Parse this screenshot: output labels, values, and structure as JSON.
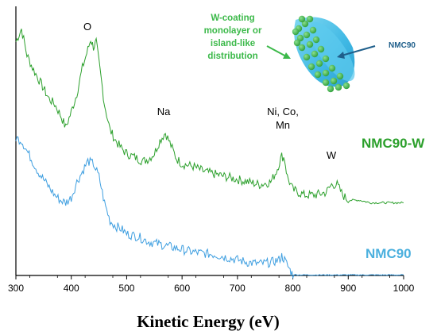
{
  "chart_data": {
    "type": "line",
    "xlabel": "Kinetic Energy (eV)",
    "ylabel": "",
    "xlim": [
      300,
      1000
    ],
    "xticks": [
      "300",
      "400",
      "500",
      "600",
      "700",
      "800",
      "900",
      "1000"
    ],
    "grid": false,
    "series": [
      {
        "name": "NMC90-W",
        "color": "#2ca02c",
        "points": [
          [
            300,
            0.9
          ],
          [
            310,
            0.95
          ],
          [
            320,
            0.85
          ],
          [
            330,
            0.8
          ],
          [
            340,
            0.76
          ],
          [
            350,
            0.72
          ],
          [
            360,
            0.68
          ],
          [
            370,
            0.66
          ],
          [
            380,
            0.62
          ],
          [
            390,
            0.57
          ],
          [
            400,
            0.63
          ],
          [
            410,
            0.7
          ],
          [
            420,
            0.8
          ],
          [
            430,
            0.87
          ],
          [
            435,
            0.91
          ],
          [
            440,
            0.88
          ],
          [
            445,
            0.9
          ],
          [
            450,
            0.82
          ],
          [
            460,
            0.66
          ],
          [
            470,
            0.56
          ],
          [
            480,
            0.52
          ],
          [
            490,
            0.49
          ],
          [
            500,
            0.47
          ],
          [
            510,
            0.46
          ],
          [
            520,
            0.45
          ],
          [
            530,
            0.44
          ],
          [
            540,
            0.45
          ],
          [
            550,
            0.47
          ],
          [
            560,
            0.52
          ],
          [
            570,
            0.55
          ],
          [
            580,
            0.5
          ],
          [
            590,
            0.45
          ],
          [
            600,
            0.43
          ],
          [
            620,
            0.42
          ],
          [
            640,
            0.4
          ],
          [
            660,
            0.39
          ],
          [
            680,
            0.38
          ],
          [
            700,
            0.37
          ],
          [
            720,
            0.36
          ],
          [
            740,
            0.35
          ],
          [
            760,
            0.36
          ],
          [
            770,
            0.4
          ],
          [
            780,
            0.46
          ],
          [
            785,
            0.45
          ],
          [
            790,
            0.38
          ],
          [
            800,
            0.33
          ],
          [
            820,
            0.31
          ],
          [
            840,
            0.31
          ],
          [
            860,
            0.32
          ],
          [
            870,
            0.35
          ],
          [
            880,
            0.35
          ],
          [
            890,
            0.31
          ],
          [
            900,
            0.29
          ],
          [
            920,
            0.29
          ],
          [
            940,
            0.28
          ],
          [
            960,
            0.28
          ],
          [
            980,
            0.28
          ],
          [
            1000,
            0.28
          ]
        ]
      },
      {
        "name": "NMC90",
        "color": "#3f9fe0",
        "points": [
          [
            300,
            0.53
          ],
          [
            310,
            0.52
          ],
          [
            320,
            0.48
          ],
          [
            330,
            0.44
          ],
          [
            340,
            0.4
          ],
          [
            350,
            0.37
          ],
          [
            360,
            0.34
          ],
          [
            370,
            0.31
          ],
          [
            380,
            0.29
          ],
          [
            390,
            0.28
          ],
          [
            400,
            0.3
          ],
          [
            410,
            0.36
          ],
          [
            420,
            0.4
          ],
          [
            430,
            0.44
          ],
          [
            440,
            0.43
          ],
          [
            450,
            0.38
          ],
          [
            460,
            0.28
          ],
          [
            470,
            0.21
          ],
          [
            480,
            0.19
          ],
          [
            490,
            0.18
          ],
          [
            500,
            0.16
          ],
          [
            520,
            0.15
          ],
          [
            540,
            0.13
          ],
          [
            560,
            0.12
          ],
          [
            580,
            0.11
          ],
          [
            600,
            0.1
          ],
          [
            620,
            0.09
          ],
          [
            640,
            0.085
          ],
          [
            660,
            0.08
          ],
          [
            680,
            0.07
          ],
          [
            700,
            0.06
          ],
          [
            720,
            0.05
          ],
          [
            740,
            0.045
          ],
          [
            760,
            0.05
          ],
          [
            775,
            0.06
          ],
          [
            780,
            0.075
          ],
          [
            785,
            0.06
          ],
          [
            795,
            0.02
          ],
          [
            800,
            0.003
          ],
          [
            820,
            0.002
          ],
          [
            850,
            0.002
          ],
          [
            900,
            0.002
          ],
          [
            950,
            0.002
          ],
          [
            1000,
            0.002
          ]
        ]
      }
    ],
    "peak_labels": [
      {
        "text": "O",
        "x": 430,
        "y": 0.94
      },
      {
        "text": "Na",
        "x": 565,
        "y": 0.61
      },
      {
        "text": "Ni, Co,",
        "x": 785,
        "y": 0.61
      },
      {
        "text": "Mn",
        "x": 785,
        "y": 0.55
      },
      {
        "text": "W",
        "x": 875,
        "y": 0.38
      }
    ],
    "series_labels": [
      {
        "text": "NMC90-W",
        "color": "#2ca02c"
      },
      {
        "text": "NMC90",
        "color": "#4bb0de"
      }
    ]
  },
  "inset": {
    "coating_lines": [
      "W-coating",
      "monolayer or",
      "island-like",
      "distribution"
    ],
    "coating_color": "#3cb94a",
    "particle_label": "NMC90",
    "particle_label_color": "#1f5f8b",
    "particle_color": "#4cc4e8",
    "dot_color": "#39b54a"
  }
}
